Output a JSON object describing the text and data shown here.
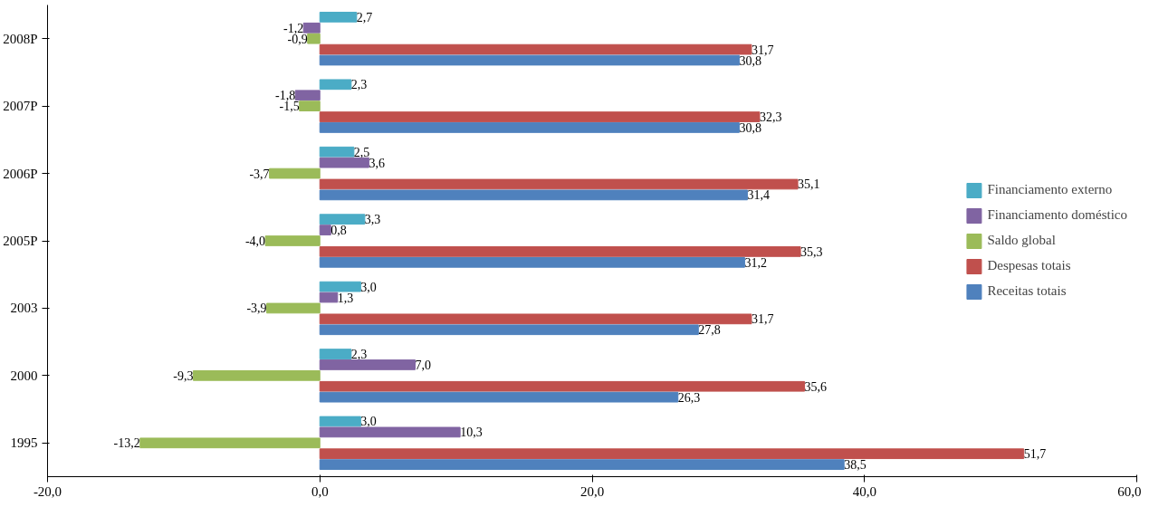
{
  "chart_data": {
    "type": "bar",
    "orientation": "horizontal",
    "categories": [
      "2008P",
      "2007P",
      "2006P",
      "2005P",
      "2003",
      "2000",
      "1995"
    ],
    "series": [
      {
        "name": "Financiamento externo",
        "color": "#4bacc6",
        "values": [
          2.7,
          2.3,
          2.5,
          3.3,
          3.0,
          2.3,
          3.0
        ],
        "value_labels": [
          "2,7",
          "2,3",
          "2,5",
          "3,3",
          "3,0",
          "2,3",
          "3,0"
        ]
      },
      {
        "name": "Financiamento doméstico",
        "color": "#8064a2",
        "values": [
          -1.2,
          -1.8,
          3.6,
          0.8,
          1.3,
          7.0,
          10.3
        ],
        "value_labels": [
          "-1,2",
          "-1,8",
          "3,6",
          "0,8",
          "1,3",
          "7,0",
          "10,3"
        ]
      },
      {
        "name": "Saldo global",
        "color": "#9bbb59",
        "values": [
          -0.9,
          -1.5,
          -3.7,
          -4.0,
          -3.9,
          -9.3,
          -13.2
        ],
        "value_labels": [
          "-0,9",
          "-1,5",
          "-3,7",
          "-4,0",
          "-3,9",
          "-9,3",
          "-13,2"
        ]
      },
      {
        "name": "Despesas totais",
        "color": "#c0504d",
        "values": [
          31.7,
          32.3,
          35.1,
          35.3,
          31.7,
          35.6,
          51.7
        ],
        "value_labels": [
          "31,7",
          "32,3",
          "35,1",
          "35,3",
          "31,7",
          "35,6",
          "51,7"
        ]
      },
      {
        "name": "Receitas totais",
        "color": "#4f81bd",
        "values": [
          30.8,
          30.8,
          31.4,
          31.2,
          27.8,
          26.3,
          38.5
        ],
        "value_labels": [
          "30,8",
          "30,8",
          "31,4",
          "31,2",
          "27,8",
          "26,3",
          "38,5"
        ]
      }
    ],
    "xlim": [
      -20,
      60
    ],
    "xticks": [
      {
        "value": -20,
        "label": "-20,0"
      },
      {
        "value": 0,
        "label": "0,0"
      },
      {
        "value": 20,
        "label": "20,0"
      },
      {
        "value": 40,
        "label": "40,0"
      },
      {
        "value": 60,
        "label": "60,0"
      }
    ],
    "grid": false,
    "legend": "right"
  }
}
